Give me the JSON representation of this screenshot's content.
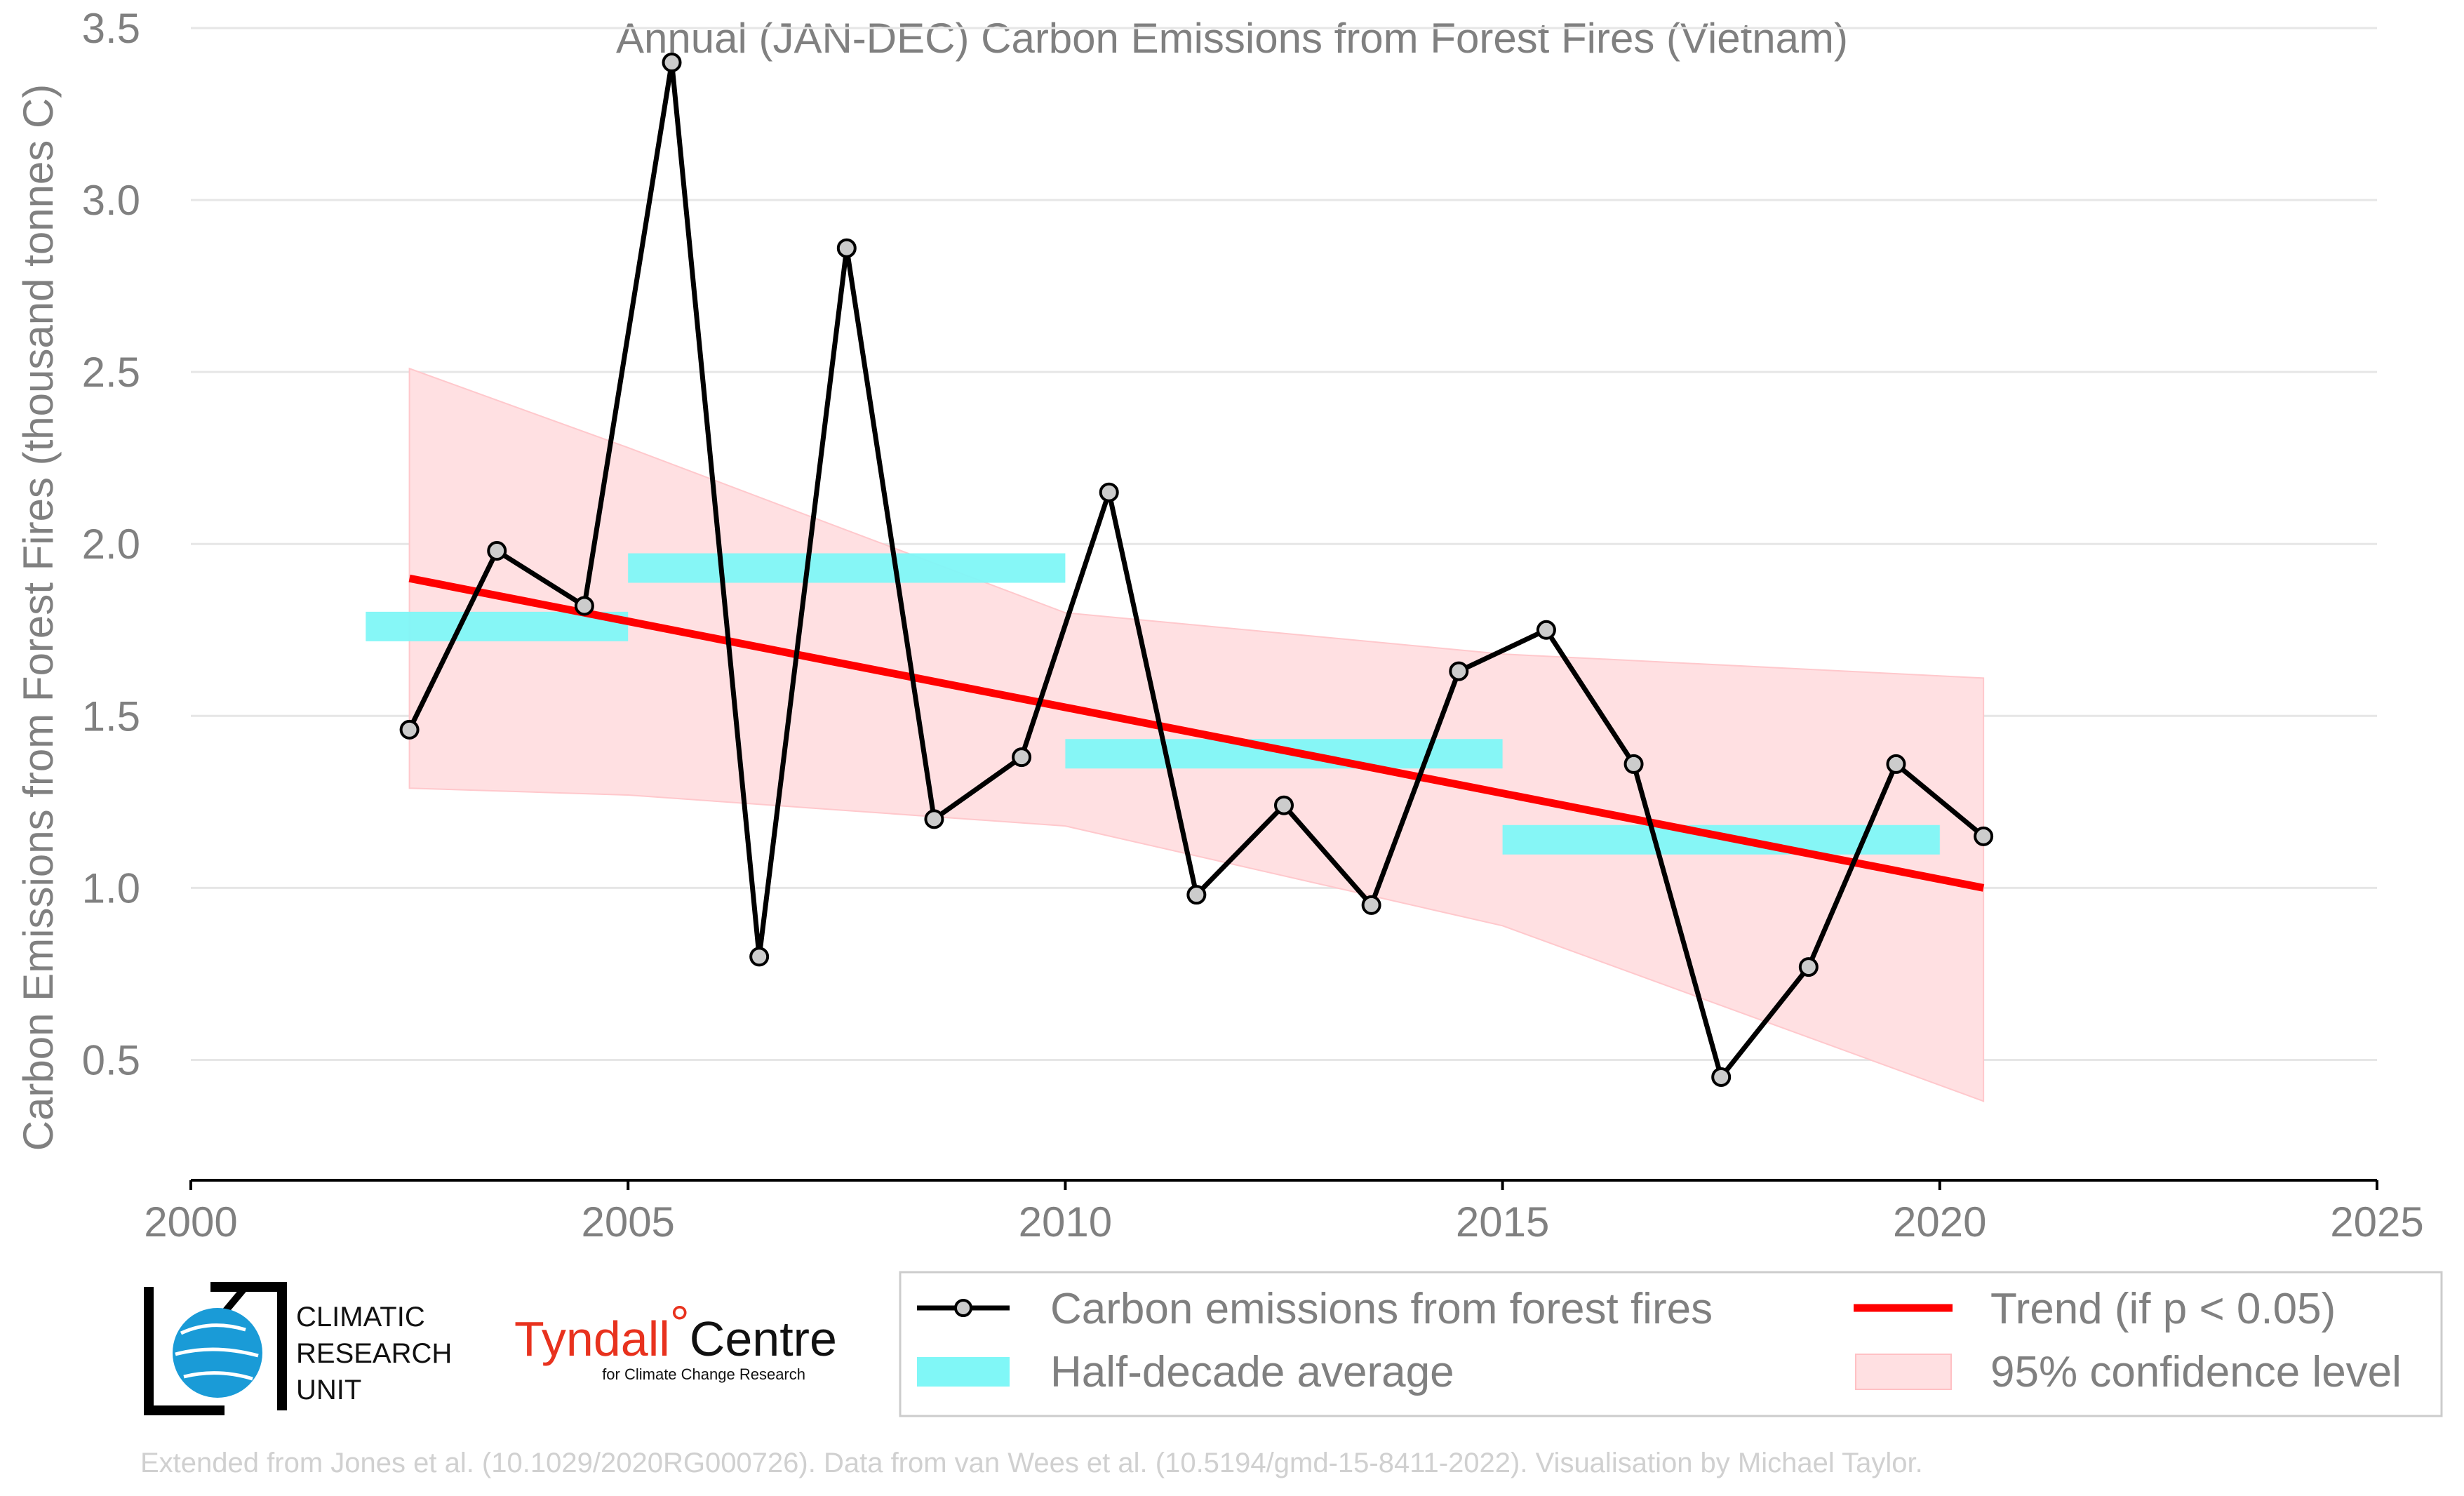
{
  "chart_data": {
    "type": "line",
    "title": "Annual (JAN-DEC) Carbon Emissions from Forest Fires (Vietnam)",
    "xlabel": "",
    "ylabel": "Carbon Emissions from Forest Fires (thousand tonnes C)",
    "xlim": [
      2000,
      2025
    ],
    "ylim": [
      0.15,
      3.5
    ],
    "x_ticks": [
      "2000",
      "2005",
      "2010",
      "2015",
      "2020",
      "2025"
    ],
    "y_ticks": [
      "0.5",
      "1.0",
      "1.5",
      "2.0",
      "2.5",
      "3.0",
      "3.5"
    ],
    "grid": "horizontal",
    "series": [
      {
        "name": "Carbon emissions from forest fires",
        "color": "#000000",
        "x": [
          2002.5,
          2003.5,
          2004.5,
          2005.5,
          2006.5,
          2007.5,
          2008.5,
          2009.5,
          2010.5,
          2011.5,
          2012.5,
          2013.5,
          2014.5,
          2015.5,
          2016.5,
          2017.5,
          2018.5,
          2019.5,
          2020.5
        ],
        "values": [
          1.46,
          1.98,
          1.82,
          3.4,
          0.8,
          2.86,
          1.2,
          1.38,
          2.15,
          0.98,
          1.24,
          0.95,
          1.63,
          1.75,
          1.36,
          0.45,
          0.77,
          1.36,
          1.15
        ]
      }
    ],
    "half_decade_average": {
      "name": "Half-decade average",
      "color": "#80f7f7",
      "segments": [
        {
          "x_start": 2002,
          "x_end": 2005,
          "value": 1.76
        },
        {
          "x_start": 2005,
          "x_end": 2010,
          "value": 1.93
        },
        {
          "x_start": 2010,
          "x_end": 2015,
          "value": 1.39
        },
        {
          "x_start": 2015,
          "x_end": 2020,
          "value": 1.14
        }
      ]
    },
    "trend": {
      "name": "Trend (if p < 0.05)",
      "color": "#ff0000",
      "x": [
        2002.5,
        2020.5
      ],
      "values": [
        1.9,
        1.0
      ]
    },
    "confidence": {
      "name": "95% confidence level",
      "color": "#ffe0e2",
      "x": [
        2002.5,
        2005,
        2010,
        2015,
        2020.5
      ],
      "upper": [
        2.51,
        2.28,
        1.8,
        1.68,
        1.61
      ],
      "lower": [
        1.29,
        1.27,
        1.18,
        0.89,
        0.38
      ]
    },
    "legend_placement": "bottom"
  },
  "logos": {
    "cru_lines": [
      "CLIMATIC",
      "RESEARCH",
      "UNIT"
    ],
    "tyndall_main": "Tyndall",
    "tyndall_degree": "°",
    "tyndall_centre": "Centre",
    "tyndall_sub": "for Climate Change Research"
  },
  "credit": "Extended from Jones et al. (10.1029/2020RG000726). Data from van Wees et al. (10.5194/gmd-15-8411-2022). Visualisation by Michael Taylor."
}
